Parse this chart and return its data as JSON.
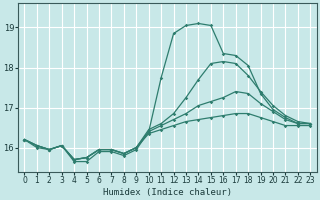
{
  "xlabel": "Humidex (Indice chaleur)",
  "xlim": [
    -0.5,
    23.5
  ],
  "ylim": [
    15.4,
    19.6
  ],
  "yticks": [
    16,
    17,
    18,
    19
  ],
  "xticks": [
    0,
    1,
    2,
    3,
    4,
    5,
    6,
    7,
    8,
    9,
    10,
    11,
    12,
    13,
    14,
    15,
    16,
    17,
    18,
    19,
    20,
    21,
    22,
    23
  ],
  "bg_color": "#c8e8e8",
  "grid_color": "#ffffff",
  "line_color": "#2e7d6e",
  "line1": [
    16.2,
    16.0,
    15.95,
    16.05,
    15.65,
    15.65,
    15.9,
    15.9,
    15.8,
    15.95,
    16.4,
    17.75,
    18.85,
    19.05,
    19.1,
    19.05,
    18.35,
    18.3,
    18.05,
    17.35,
    16.95,
    16.75,
    16.6,
    16.6
  ],
  "line2": [
    16.2,
    16.05,
    15.95,
    16.05,
    15.7,
    15.75,
    15.95,
    15.95,
    15.85,
    16.0,
    16.45,
    16.6,
    16.85,
    17.25,
    17.7,
    18.1,
    18.15,
    18.1,
    17.8,
    17.4,
    17.05,
    16.8,
    16.65,
    16.6
  ],
  "line3": [
    16.2,
    16.05,
    15.95,
    16.05,
    15.7,
    15.75,
    15.95,
    15.95,
    15.85,
    16.0,
    16.4,
    16.55,
    16.7,
    16.85,
    17.05,
    17.15,
    17.25,
    17.4,
    17.35,
    17.1,
    16.9,
    16.7,
    16.6,
    16.6
  ],
  "line4": [
    16.2,
    16.05,
    15.95,
    16.05,
    15.7,
    15.75,
    15.95,
    15.95,
    15.85,
    16.0,
    16.35,
    16.45,
    16.55,
    16.65,
    16.7,
    16.75,
    16.8,
    16.85,
    16.85,
    16.75,
    16.65,
    16.55,
    16.55,
    16.55
  ]
}
